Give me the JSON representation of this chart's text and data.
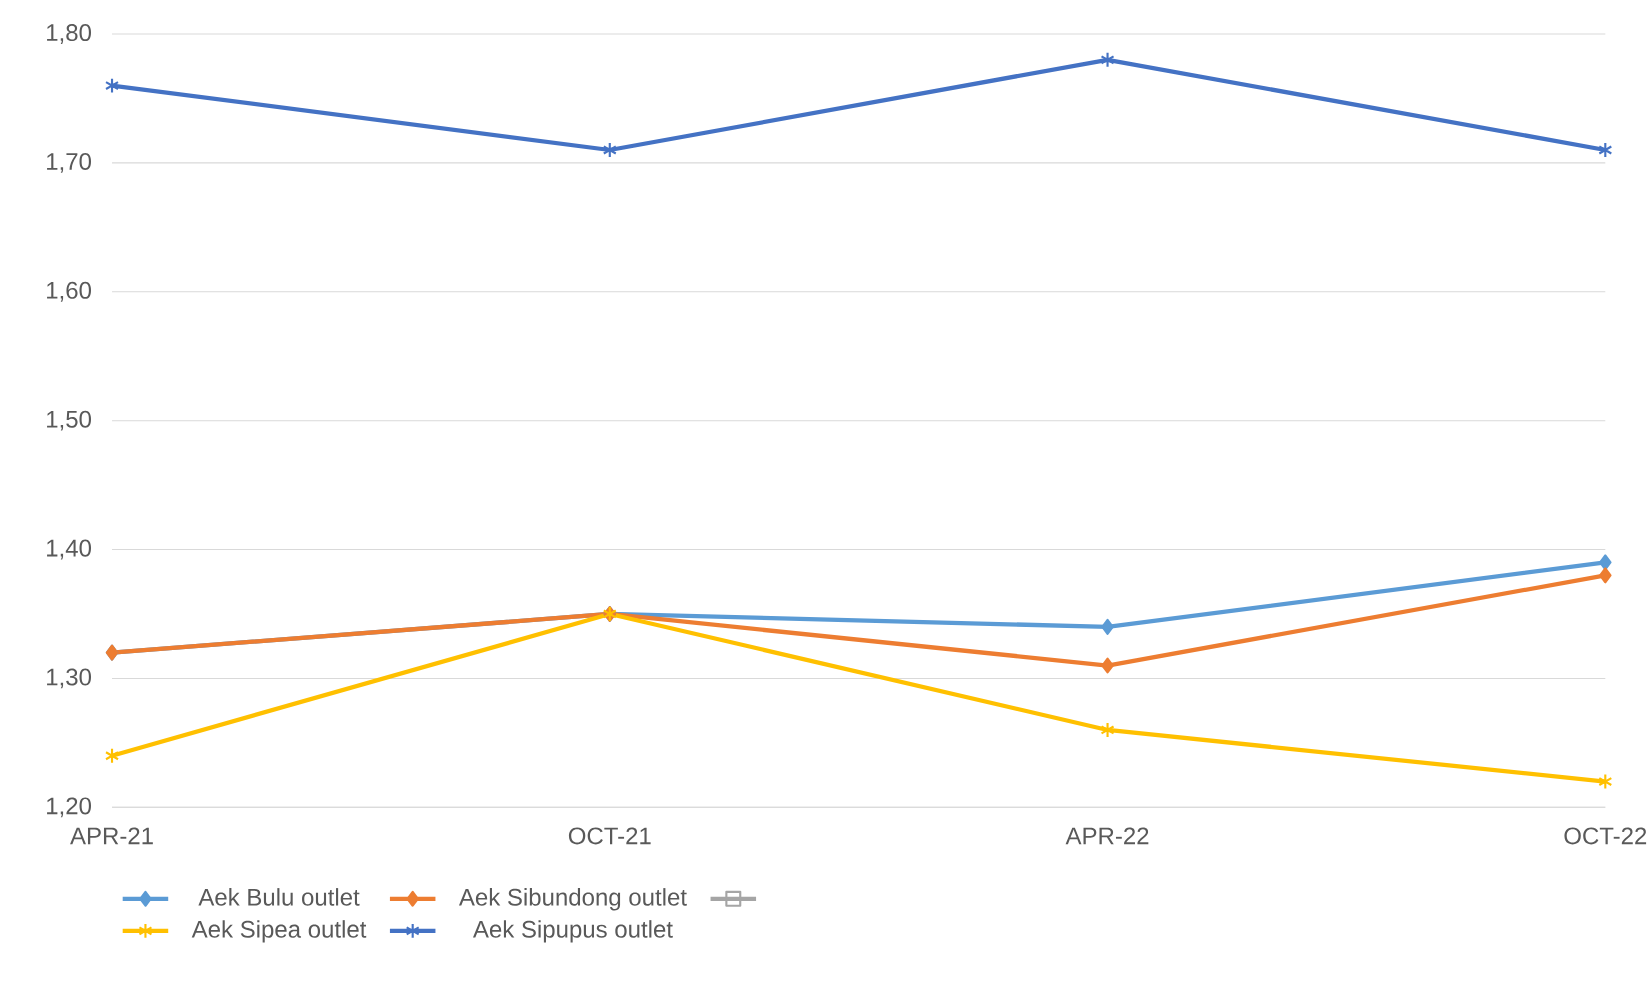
{
  "chart_data": {
    "type": "line",
    "categories": [
      "APR-21",
      "OCT-21",
      "APR-22",
      "OCT-22"
    ],
    "series": [
      {
        "name": "Aek Bulu outlet",
        "color": "#5b9bd5",
        "marker": "diamond",
        "values": [
          1.32,
          1.35,
          1.34,
          1.39
        ]
      },
      {
        "name": "Aek Sibundong outlet",
        "color": "#ed7d31",
        "marker": "diamond",
        "values": [
          1.32,
          1.35,
          1.31,
          1.38
        ]
      },
      {
        "color": "#a5a5a5",
        "marker": "square",
        "values": [
          null,
          null,
          null,
          null
        ]
      },
      {
        "name": "Aek Sipea outlet",
        "color": "#ffc000",
        "marker": "cross",
        "values": [
          1.24,
          1.35,
          1.26,
          1.22
        ]
      },
      {
        "name": "Aek Sipupus outlet",
        "color": "#4472c4",
        "marker": "cross",
        "values": [
          1.76,
          1.71,
          1.78,
          1.71
        ]
      }
    ],
    "ylim": [
      1.2,
      1.8
    ],
    "yticks": [
      {
        "value": 1.2,
        "label": "1,20"
      },
      {
        "value": 1.3,
        "label": "1,30"
      },
      {
        "value": 1.4,
        "label": "1,40"
      },
      {
        "value": 1.5,
        "label": "1,50"
      },
      {
        "value": 1.6,
        "label": "1,60"
      },
      {
        "value": 1.7,
        "label": "1,70"
      },
      {
        "value": 1.8,
        "label": "1,80"
      }
    ],
    "grid": "y",
    "legend": "bottom",
    "line_style": "solid"
  }
}
